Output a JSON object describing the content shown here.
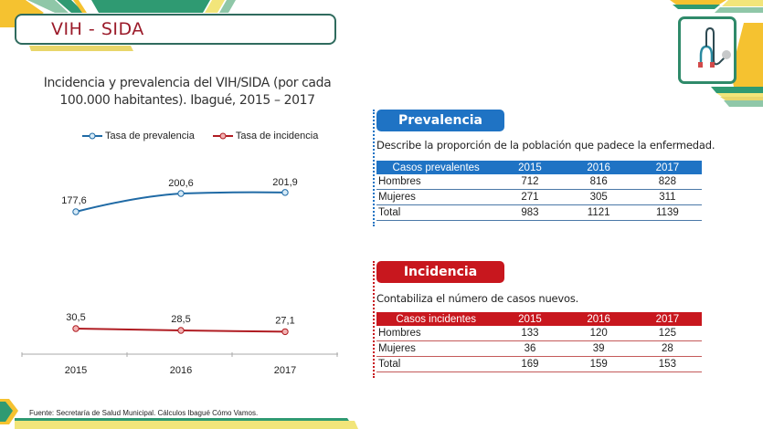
{
  "header": {
    "title": "VIH - SIDA"
  },
  "chart_title": {
    "line1": "Incidencia y prevalencia del VIH/SIDA (por cada",
    "line2": "100.000 habitantes). Ibagué, 2015 – 2017"
  },
  "legend": {
    "prevalence": "Tasa de prevalencia",
    "incidence": "Tasa de incidencia"
  },
  "chart_data": {
    "type": "line",
    "title": "Incidencia y prevalencia del VIH/SIDA (por cada 100.000 habitantes). Ibagué, 2015 – 2017",
    "x": [
      "2015",
      "2016",
      "2017"
    ],
    "series": [
      {
        "name": "Tasa de prevalencia",
        "values": [
          177.6,
          200.6,
          201.9
        ],
        "labels": [
          "177,6",
          "200,6",
          "201,9"
        ],
        "color": "#1f6aa5"
      },
      {
        "name": "Tasa de incidencia",
        "values": [
          30.5,
          28.5,
          27.1
        ],
        "labels": [
          "30,5",
          "28,5",
          "27,1"
        ],
        "color": "#b01c22"
      }
    ],
    "xlabel": "",
    "ylabel": "",
    "grid": false,
    "legend_position": "top"
  },
  "prevalencia": {
    "badge": "Prevalencia",
    "description": "Describe la proporción de la población que padece la enfermedad.",
    "color": "#1f73c4",
    "headers": [
      "Casos prevalentes",
      "2015",
      "2016",
      "2017"
    ],
    "rows": [
      [
        "Hombres",
        "712",
        "816",
        "828"
      ],
      [
        "Mujeres",
        "271",
        "305",
        "311"
      ],
      [
        "Total",
        "983",
        "1121",
        "1139"
      ]
    ]
  },
  "incidencia": {
    "badge": "Incidencia",
    "description": "Contabiliza el número de casos nuevos.",
    "color": "#c8171e",
    "headers": [
      "Casos incidentes",
      "2015",
      "2016",
      "2017"
    ],
    "rows": [
      [
        "Hombres",
        "133",
        "120",
        "125"
      ],
      [
        "Mujeres",
        "36",
        "39",
        "28"
      ],
      [
        "Total",
        "169",
        "159",
        "153"
      ]
    ]
  },
  "footer": {
    "source": "Fuente: Secretaría de Salud Municipal. Cálculos Ibagué Cómo Vamos."
  },
  "icons": {
    "header_icon": "stethoscope-icon"
  }
}
